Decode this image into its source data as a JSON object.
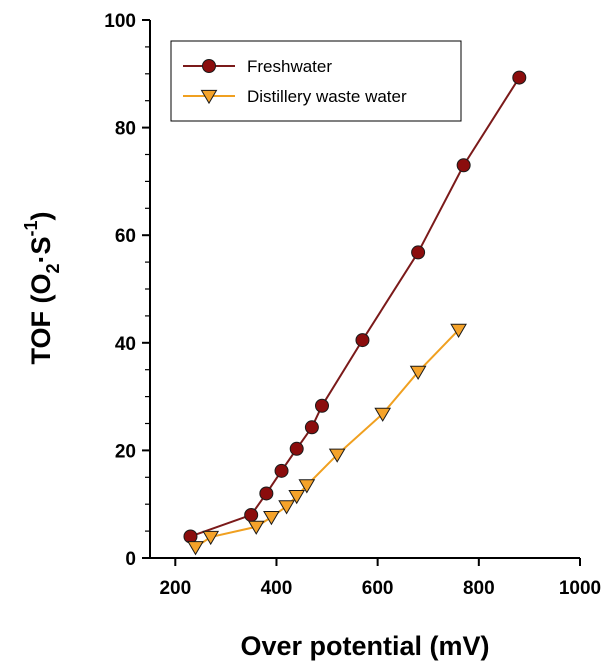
{
  "chart_data": {
    "type": "line",
    "xlabel": "Over potential (mV)",
    "ylabel_main": "TOF (O",
    "ylabel_sub": "2",
    "ylabel_mid": "·S",
    "ylabel_sup": "-1",
    "ylabel_close": ")",
    "xlim": [
      150,
      1000
    ],
    "ylim": [
      0,
      100
    ],
    "xticks": [
      200,
      400,
      600,
      800,
      1000
    ],
    "yticks": [
      0,
      20,
      40,
      60,
      80,
      100
    ],
    "grid": false,
    "legend_position": "top-left",
    "series": [
      {
        "name": "Freshwater",
        "marker": "circle",
        "line_color": "#7b1a1a",
        "marker_color": "#8b0d0d",
        "x": [
          230,
          350,
          380,
          410,
          440,
          470,
          490,
          570,
          680,
          770,
          880
        ],
        "y": [
          4.0,
          8.0,
          12.0,
          16.2,
          20.3,
          24.3,
          28.3,
          40.5,
          56.8,
          73.0,
          89.3
        ]
      },
      {
        "name": "Distillery waste water",
        "marker": "triangle-down",
        "line_color": "#f0a020",
        "marker_color": "#f5a32a",
        "x": [
          240,
          270,
          360,
          390,
          420,
          440,
          460,
          520,
          610,
          680,
          760
        ],
        "y": [
          2.0,
          3.9,
          5.8,
          7.6,
          9.6,
          11.5,
          13.5,
          19.2,
          26.8,
          34.6,
          42.4
        ]
      }
    ]
  }
}
